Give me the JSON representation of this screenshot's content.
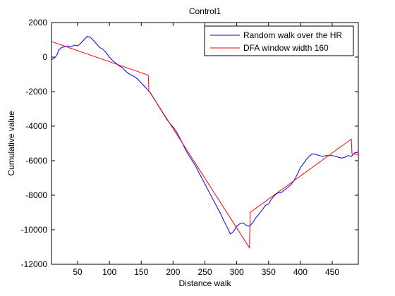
{
  "chart_data": {
    "type": "line",
    "title": "Control1",
    "xlabel": "Distance walk",
    "ylabel": "Cumulative value",
    "xlim": [
      9,
      491
    ],
    "ylim": [
      -12000,
      2000
    ],
    "xticks": [
      50,
      100,
      150,
      200,
      250,
      300,
      350,
      400,
      450
    ],
    "yticks": [
      2000,
      0,
      -2000,
      -4000,
      -6000,
      -8000,
      -10000,
      -12000
    ],
    "grid": false,
    "legend_position": "top-right",
    "series": [
      {
        "name": "Random walk over the HR",
        "color": "#0000ff",
        "x": [
          9,
          12,
          15,
          18,
          20,
          25,
          30,
          35,
          40,
          45,
          50,
          55,
          60,
          65,
          70,
          75,
          80,
          85,
          90,
          95,
          100,
          105,
          110,
          115,
          120,
          125,
          130,
          135,
          140,
          145,
          150,
          155,
          160,
          165,
          170,
          175,
          180,
          185,
          190,
          195,
          200,
          205,
          210,
          215,
          220,
          225,
          230,
          235,
          240,
          245,
          250,
          255,
          260,
          265,
          270,
          275,
          280,
          285,
          290,
          295,
          300,
          305,
          310,
          315,
          320,
          325,
          330,
          335,
          340,
          345,
          350,
          355,
          360,
          365,
          370,
          375,
          380,
          385,
          390,
          395,
          400,
          405,
          410,
          415,
          420,
          425,
          430,
          435,
          440,
          445,
          450,
          455,
          460,
          465,
          470,
          475,
          480,
          485,
          491
        ],
        "y": [
          -150,
          -100,
          0,
          150,
          400,
          550,
          600,
          650,
          600,
          700,
          650,
          800,
          1000,
          1200,
          1150,
          950,
          750,
          550,
          450,
          250,
          0,
          -200,
          -350,
          -500,
          -600,
          -800,
          -950,
          -1050,
          -1150,
          -1300,
          -1500,
          -1700,
          -1900,
          -2100,
          -2400,
          -2700,
          -3000,
          -3300,
          -3600,
          -3850,
          -4050,
          -4300,
          -4650,
          -5000,
          -5400,
          -5700,
          -6000,
          -6300,
          -6650,
          -7000,
          -7350,
          -7700,
          -8050,
          -8400,
          -8750,
          -9100,
          -9500,
          -9850,
          -10250,
          -10100,
          -9800,
          -9650,
          -9600,
          -9750,
          -9800,
          -9600,
          -9300,
          -9100,
          -8850,
          -8600,
          -8500,
          -8200,
          -8000,
          -7850,
          -7850,
          -7700,
          -7550,
          -7400,
          -7150,
          -6800,
          -6400,
          -6150,
          -5900,
          -5700,
          -5600,
          -5650,
          -5700,
          -5750,
          -5700,
          -5700,
          -5700,
          -5750,
          -5800,
          -5850,
          -5800,
          -5700,
          -5750,
          -5550,
          -5500
        ]
      },
      {
        "name": "DFA window width 160",
        "color": "#ff0000",
        "x": [
          9,
          161,
          162,
          320,
          321,
          480,
          481,
          491
        ],
        "y": [
          900,
          -1050,
          -1950,
          -11050,
          -9000,
          -4750,
          -5600,
          -5650
        ]
      }
    ]
  }
}
